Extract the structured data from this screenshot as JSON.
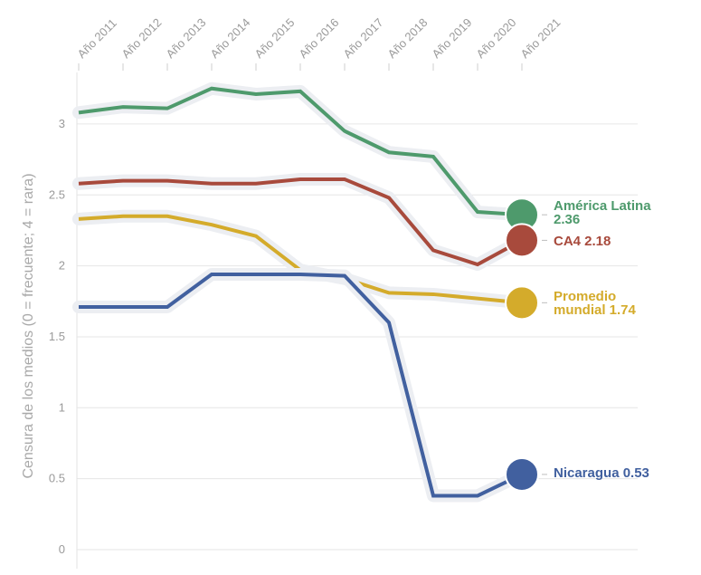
{
  "chart_data": {
    "type": "line",
    "title": "",
    "xlabel": "",
    "ylabel": "Censura de los medios (0 = frecuente; 4 = rara)",
    "categories": [
      "Año 2011",
      "Año 2012",
      "Año 2013",
      "Año 2014",
      "Año 2015",
      "Año 2016",
      "Año 2017",
      "Año 2018",
      "Año 2019",
      "Año 2020",
      "Año 2021"
    ],
    "y_ticks": [
      "0",
      "0.5",
      "1",
      "1.5",
      "2",
      "2.5",
      "3"
    ],
    "ylim": [
      0,
      3.4
    ],
    "grid": "horizontal",
    "legend": "direct labels at line ends (right)",
    "series": [
      {
        "name": "América Latina",
        "label_lines": [
          "América Latina",
          "2.36"
        ],
        "color": "#4e9a6c",
        "values": [
          3.08,
          3.12,
          3.11,
          3.25,
          3.21,
          3.23,
          2.95,
          2.8,
          2.77,
          2.38,
          2.36
        ]
      },
      {
        "name": "CA4",
        "label_lines": [
          "CA4 2.18"
        ],
        "color": "#a84a3c",
        "values": [
          2.58,
          2.6,
          2.6,
          2.58,
          2.58,
          2.61,
          2.61,
          2.48,
          2.11,
          2.01,
          2.18
        ]
      },
      {
        "name": "Promedio mundial",
        "label_lines": [
          "Promedio",
          "mundial 1.74"
        ],
        "color": "#d4ab2b",
        "values": [
          2.33,
          2.35,
          2.35,
          2.29,
          2.21,
          1.97,
          1.91,
          1.81,
          1.8,
          1.77,
          1.74
        ]
      },
      {
        "name": "Nicaragua",
        "label_lines": [
          "Nicaragua 0.53"
        ],
        "color": "#41609f",
        "values": [
          1.71,
          1.71,
          1.71,
          1.94,
          1.94,
          1.94,
          1.93,
          1.6,
          0.38,
          0.38,
          0.53
        ]
      }
    ]
  }
}
